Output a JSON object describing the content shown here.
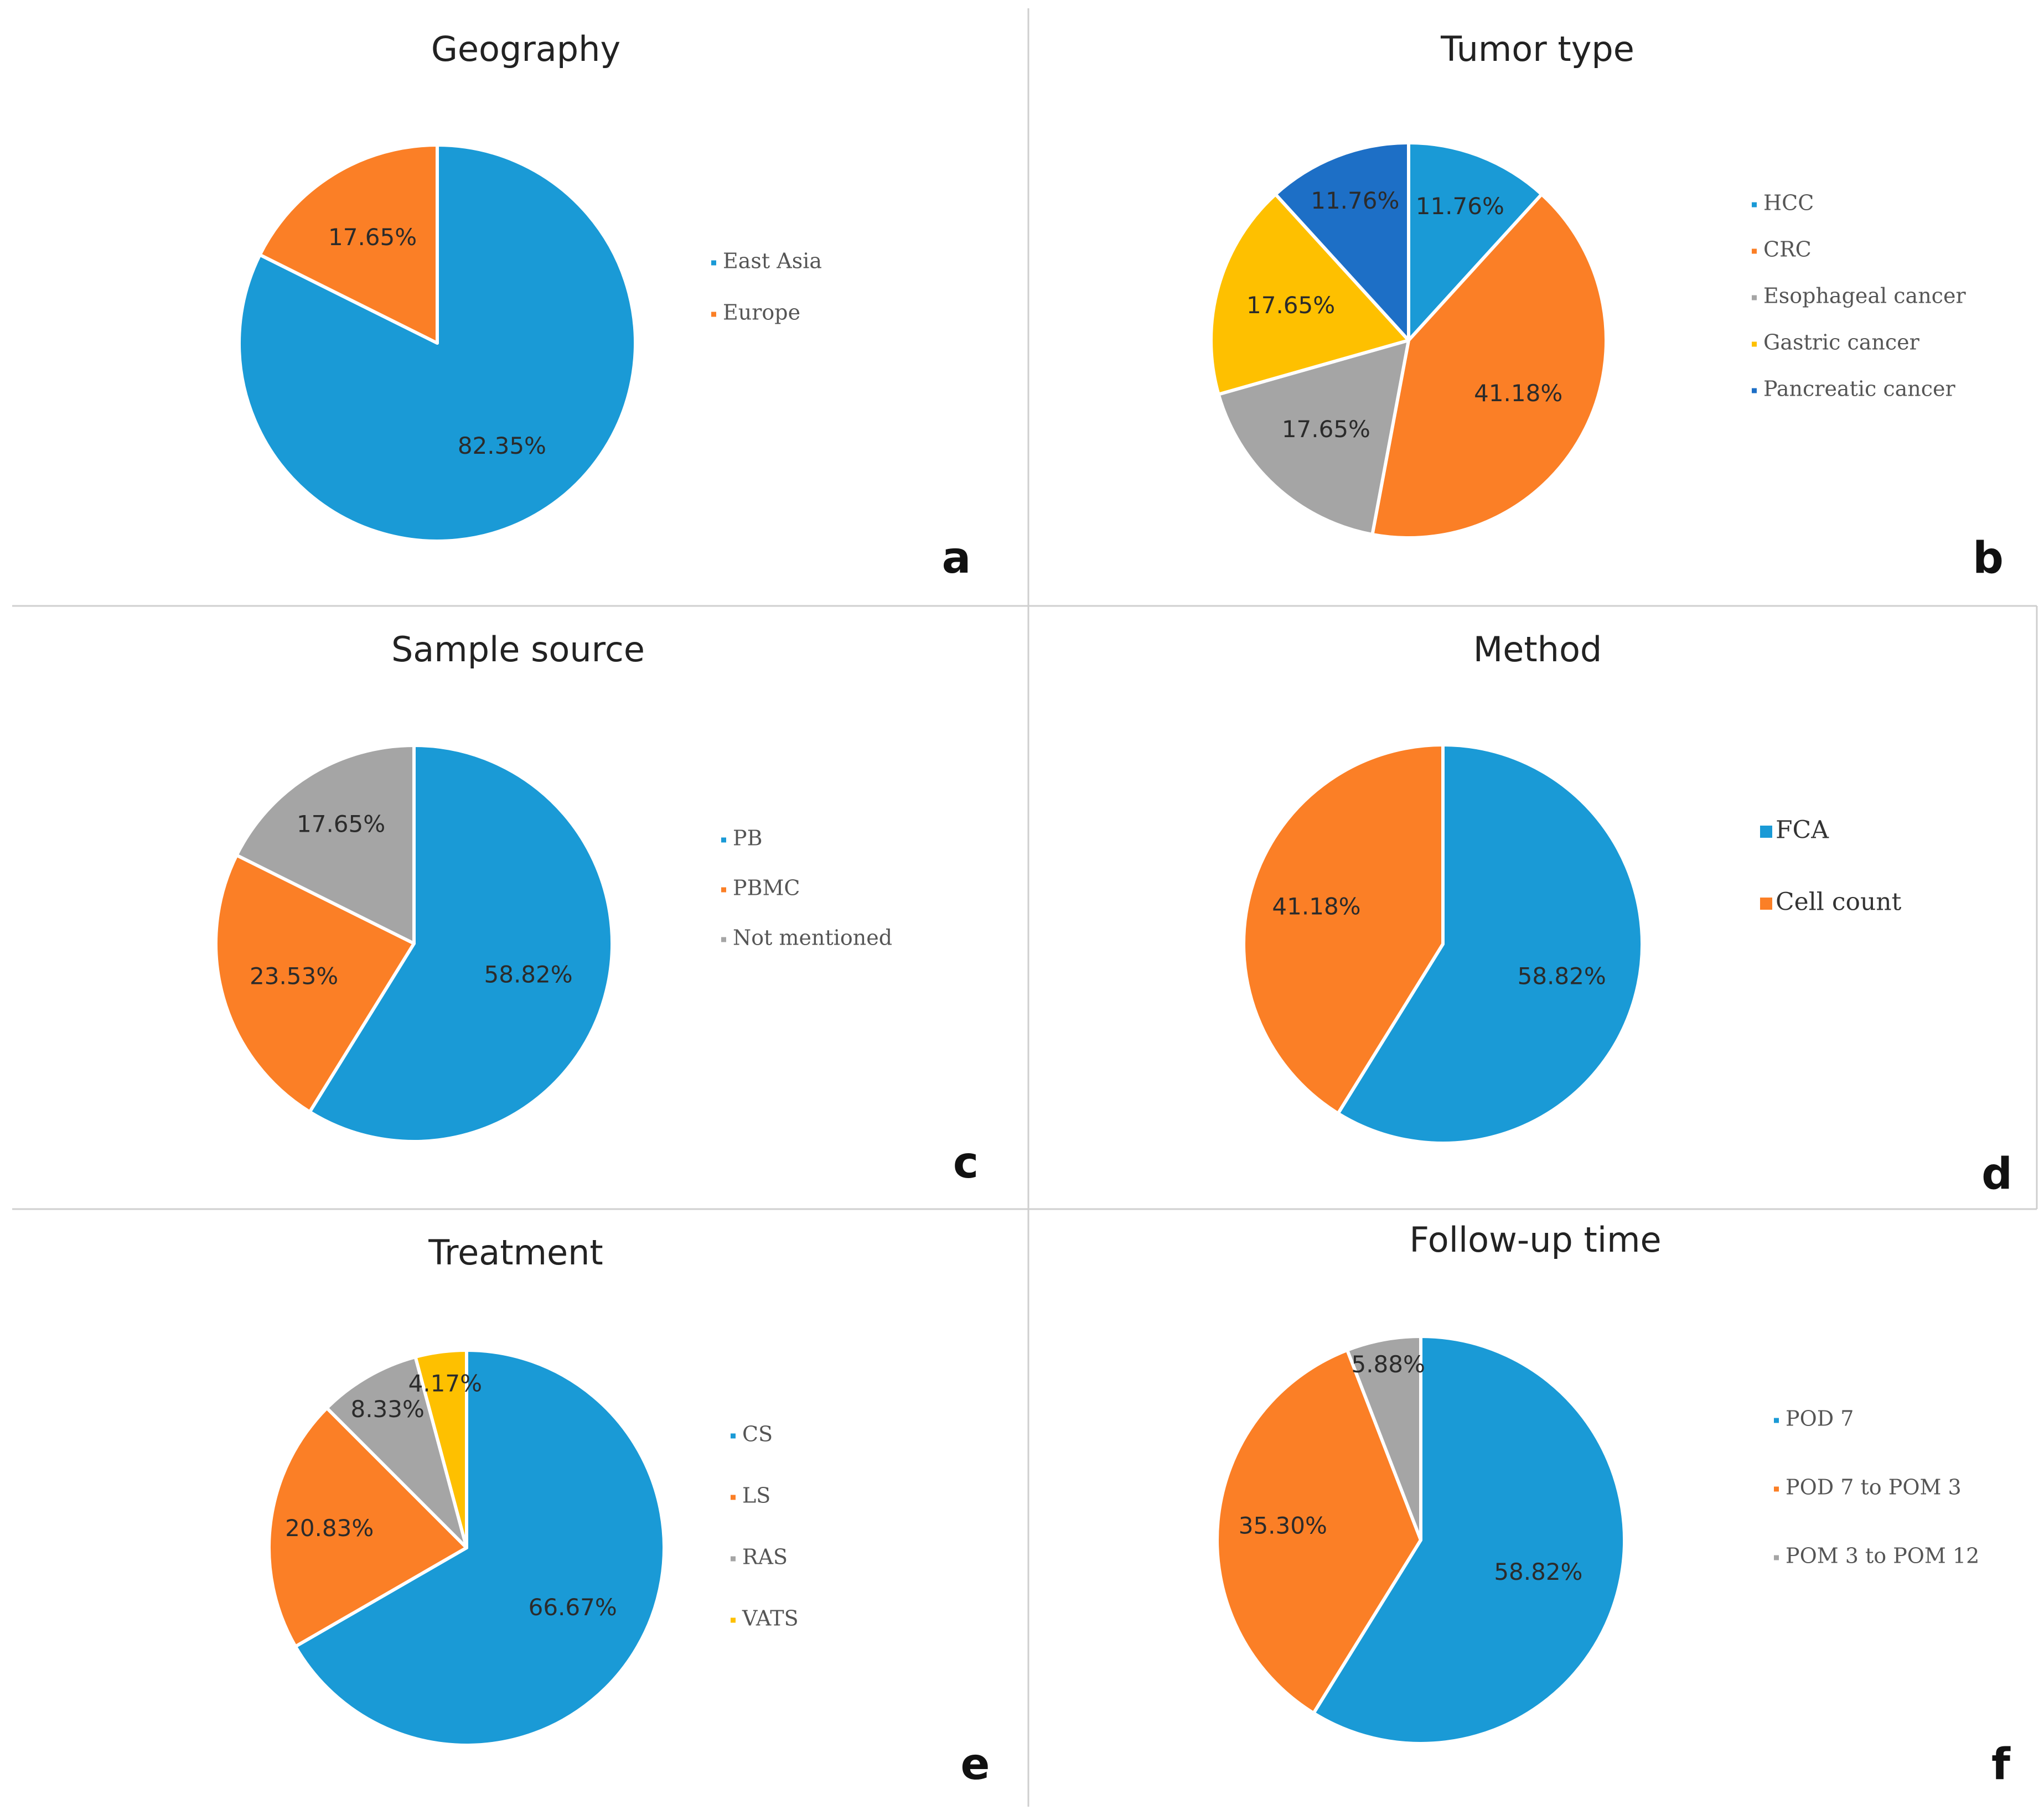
{
  "colors": {
    "blue": "#1a9ad6",
    "orange": "#fb7f26",
    "gray": "#a5a5a5",
    "yellow": "#fec000",
    "darkblue": "#1d6fc6",
    "divider": "#cfcfcf"
  },
  "chart_data": [
    {
      "type": "pie",
      "panel": "a",
      "title": "Geography",
      "categories": [
        "East Asia",
        "Europe"
      ],
      "values": [
        82.35,
        17.65
      ],
      "labels": [
        "82.35%",
        "17.65%"
      ],
      "colors": [
        "#1a9ad6",
        "#fb7f26"
      ],
      "legend": "right"
    },
    {
      "type": "pie",
      "panel": "b",
      "title": "Tumor type",
      "categories": [
        "HCC",
        "CRC",
        "Esophageal cancer",
        "Gastric cancer",
        "Pancreatic cancer"
      ],
      "values": [
        11.76,
        41.18,
        17.65,
        17.65,
        11.76
      ],
      "labels": [
        "11.76%",
        "41.18%",
        "17.65%",
        "17.65%",
        "11.76%"
      ],
      "colors": [
        "#1a9ad6",
        "#fb7f26",
        "#a5a5a5",
        "#fec000",
        "#1d6fc6"
      ],
      "legend": "right"
    },
    {
      "type": "pie",
      "panel": "c",
      "title": "Sample source",
      "categories": [
        "PB",
        "PBMC",
        "Not mentioned"
      ],
      "values": [
        58.82,
        23.53,
        17.65
      ],
      "labels": [
        "58.82%",
        "23.53%",
        "17.65%"
      ],
      "colors": [
        "#1a9ad6",
        "#fb7f26",
        "#a5a5a5"
      ],
      "legend": "right"
    },
    {
      "type": "pie",
      "panel": "d",
      "title": "Method",
      "categories": [
        "FCA",
        "Cell count"
      ],
      "values": [
        58.82,
        41.18
      ],
      "labels": [
        "58.82%",
        "41.18%"
      ],
      "colors": [
        "#1a9ad6",
        "#fb7f26"
      ],
      "legend": "right"
    },
    {
      "type": "pie",
      "panel": "e",
      "title": "Treatment",
      "categories": [
        "CS",
        "LS",
        "RAS",
        "VATS"
      ],
      "values": [
        66.67,
        20.83,
        8.33,
        4.17
      ],
      "labels": [
        "66.67%",
        "20.83%",
        "8.33%",
        "4.17%"
      ],
      "colors": [
        "#1a9ad6",
        "#fb7f26",
        "#a5a5a5",
        "#fec000"
      ],
      "legend": "right"
    },
    {
      "type": "pie",
      "panel": "f",
      "title": "Follow-up time",
      "categories": [
        "POD 7",
        "POD 7 to POM 3",
        "POM 3 to POM 12"
      ],
      "values": [
        58.82,
        35.3,
        5.88
      ],
      "labels": [
        "58.82%",
        "35.30%",
        "5.88%"
      ],
      "colors": [
        "#1a9ad6",
        "#fb7f26",
        "#a5a5a5"
      ],
      "legend": "right"
    }
  ]
}
